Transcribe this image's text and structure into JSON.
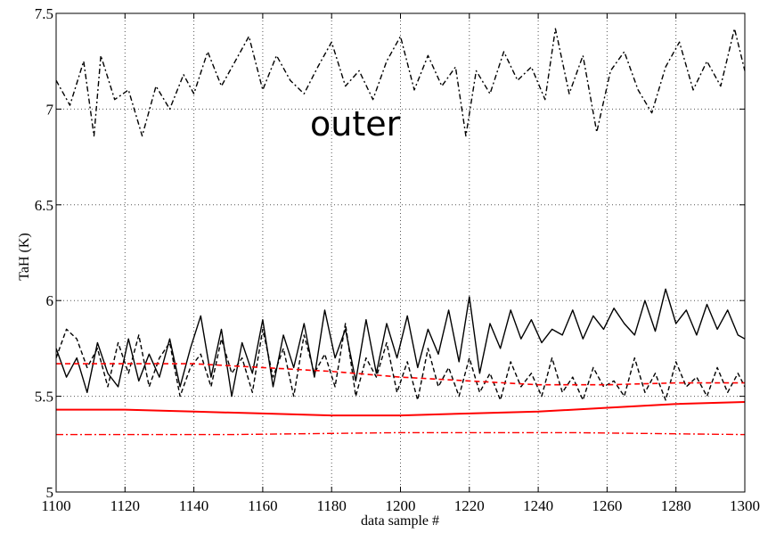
{
  "chart_data": {
    "type": "line",
    "xlabel": "data sample #",
    "ylabel": "TaH (K)",
    "annotation": "outer",
    "xlim": [
      1100,
      1300
    ],
    "ylim": [
      5,
      7.5
    ],
    "xticks": [
      "1100",
      "1120",
      "1140",
      "1160",
      "1180",
      "1200",
      "1220",
      "1240",
      "1260",
      "1280",
      "1300"
    ],
    "yticks": [
      "5",
      "5.5",
      "6",
      "6.5",
      "7",
      "7.5"
    ],
    "grid": true,
    "series": [
      {
        "style": "black-dashdot",
        "color": "#000000",
        "x": [
          1100,
          1104,
          1108,
          1111,
          1113,
          1117,
          1121,
          1125,
          1129,
          1133,
          1137,
          1140,
          1144,
          1148,
          1152,
          1156,
          1160,
          1164,
          1168,
          1172,
          1176,
          1180,
          1184,
          1188,
          1192,
          1196,
          1200,
          1204,
          1208,
          1212,
          1216,
          1219,
          1222,
          1226,
          1230,
          1234,
          1238,
          1242,
          1245,
          1249,
          1253,
          1257,
          1261,
          1265,
          1269,
          1273,
          1277,
          1281,
          1285,
          1289,
          1293,
          1297,
          1300
        ],
        "values": [
          7.15,
          7.02,
          7.25,
          6.86,
          7.28,
          7.05,
          7.1,
          6.86,
          7.12,
          7.0,
          7.18,
          7.08,
          7.3,
          7.12,
          7.25,
          7.38,
          7.1,
          7.28,
          7.15,
          7.08,
          7.22,
          7.35,
          7.12,
          7.2,
          7.05,
          7.25,
          7.38,
          7.1,
          7.28,
          7.12,
          7.22,
          6.86,
          7.2,
          7.08,
          7.3,
          7.15,
          7.22,
          7.05,
          7.42,
          7.08,
          7.28,
          6.88,
          7.2,
          7.3,
          7.1,
          6.98,
          7.22,
          7.35,
          7.1,
          7.25,
          7.12,
          7.42,
          7.2
        ]
      },
      {
        "style": "black-solid",
        "color": "#000000",
        "x": [
          1100,
          1103,
          1106,
          1109,
          1112,
          1115,
          1118,
          1121,
          1124,
          1127,
          1130,
          1133,
          1136,
          1139,
          1142,
          1145,
          1148,
          1151,
          1154,
          1157,
          1160,
          1163,
          1166,
          1169,
          1172,
          1175,
          1178,
          1181,
          1184,
          1187,
          1190,
          1193,
          1196,
          1199,
          1202,
          1205,
          1208,
          1211,
          1214,
          1217,
          1220,
          1223,
          1226,
          1229,
          1232,
          1235,
          1238,
          1241,
          1244,
          1247,
          1250,
          1253,
          1256,
          1259,
          1262,
          1265,
          1268,
          1271,
          1274,
          1277,
          1280,
          1283,
          1286,
          1289,
          1292,
          1295,
          1298,
          1300
        ],
        "values": [
          5.75,
          5.6,
          5.7,
          5.52,
          5.78,
          5.62,
          5.55,
          5.8,
          5.58,
          5.72,
          5.6,
          5.8,
          5.55,
          5.75,
          5.92,
          5.6,
          5.85,
          5.5,
          5.78,
          5.62,
          5.9,
          5.55,
          5.82,
          5.65,
          5.88,
          5.6,
          5.95,
          5.7,
          5.85,
          5.58,
          5.9,
          5.62,
          5.88,
          5.7,
          5.92,
          5.65,
          5.85,
          5.72,
          5.95,
          5.68,
          6.02,
          5.62,
          5.88,
          5.75,
          5.95,
          5.8,
          5.9,
          5.78,
          5.85,
          5.82,
          5.95,
          5.8,
          5.92,
          5.85,
          5.96,
          5.88,
          5.82,
          6.0,
          5.84,
          6.06,
          5.88,
          5.95,
          5.82,
          5.98,
          5.85,
          5.95,
          5.82,
          5.8
        ]
      },
      {
        "style": "black-dashed",
        "color": "#000000",
        "x": [
          1100,
          1103,
          1106,
          1109,
          1112,
          1115,
          1118,
          1121,
          1124,
          1127,
          1130,
          1133,
          1136,
          1139,
          1142,
          1145,
          1148,
          1151,
          1154,
          1157,
          1160,
          1163,
          1166,
          1169,
          1172,
          1175,
          1178,
          1181,
          1184,
          1187,
          1190,
          1193,
          1196,
          1199,
          1202,
          1205,
          1208,
          1211,
          1214,
          1217,
          1220,
          1223,
          1226,
          1229,
          1232,
          1235,
          1238,
          1241,
          1244,
          1247,
          1250,
          1253,
          1256,
          1259,
          1262,
          1265,
          1268,
          1271,
          1274,
          1277,
          1280,
          1283,
          1286,
          1289,
          1292,
          1295,
          1298,
          1300
        ],
        "values": [
          5.7,
          5.85,
          5.8,
          5.65,
          5.75,
          5.55,
          5.78,
          5.62,
          5.82,
          5.55,
          5.7,
          5.78,
          5.5,
          5.65,
          5.72,
          5.55,
          5.8,
          5.62,
          5.7,
          5.52,
          5.85,
          5.6,
          5.75,
          5.5,
          5.82,
          5.62,
          5.72,
          5.55,
          5.88,
          5.5,
          5.7,
          5.6,
          5.78,
          5.52,
          5.68,
          5.48,
          5.75,
          5.55,
          5.65,
          5.5,
          5.7,
          5.52,
          5.62,
          5.48,
          5.68,
          5.55,
          5.62,
          5.5,
          5.7,
          5.52,
          5.6,
          5.48,
          5.65,
          5.55,
          5.58,
          5.5,
          5.7,
          5.52,
          5.62,
          5.48,
          5.68,
          5.55,
          5.6,
          5.5,
          5.65,
          5.52,
          5.62,
          5.55
        ]
      },
      {
        "style": "red-dashed",
        "color": "#ff0000",
        "x": [
          1100,
          1120,
          1140,
          1160,
          1180,
          1200,
          1220,
          1240,
          1260,
          1280,
          1300
        ],
        "values": [
          5.67,
          5.67,
          5.67,
          5.65,
          5.63,
          5.6,
          5.58,
          5.56,
          5.56,
          5.57,
          5.57
        ]
      },
      {
        "style": "red-solid",
        "color": "#ff0000",
        "x": [
          1100,
          1120,
          1140,
          1160,
          1180,
          1200,
          1220,
          1240,
          1260,
          1280,
          1300
        ],
        "values": [
          5.43,
          5.43,
          5.42,
          5.41,
          5.4,
          5.4,
          5.41,
          5.42,
          5.44,
          5.46,
          5.47
        ]
      },
      {
        "style": "red-dashdot",
        "color": "#ff0000",
        "x": [
          1100,
          1150,
          1200,
          1250,
          1300
        ],
        "values": [
          5.3,
          5.3,
          5.31,
          5.31,
          5.3
        ]
      }
    ]
  }
}
